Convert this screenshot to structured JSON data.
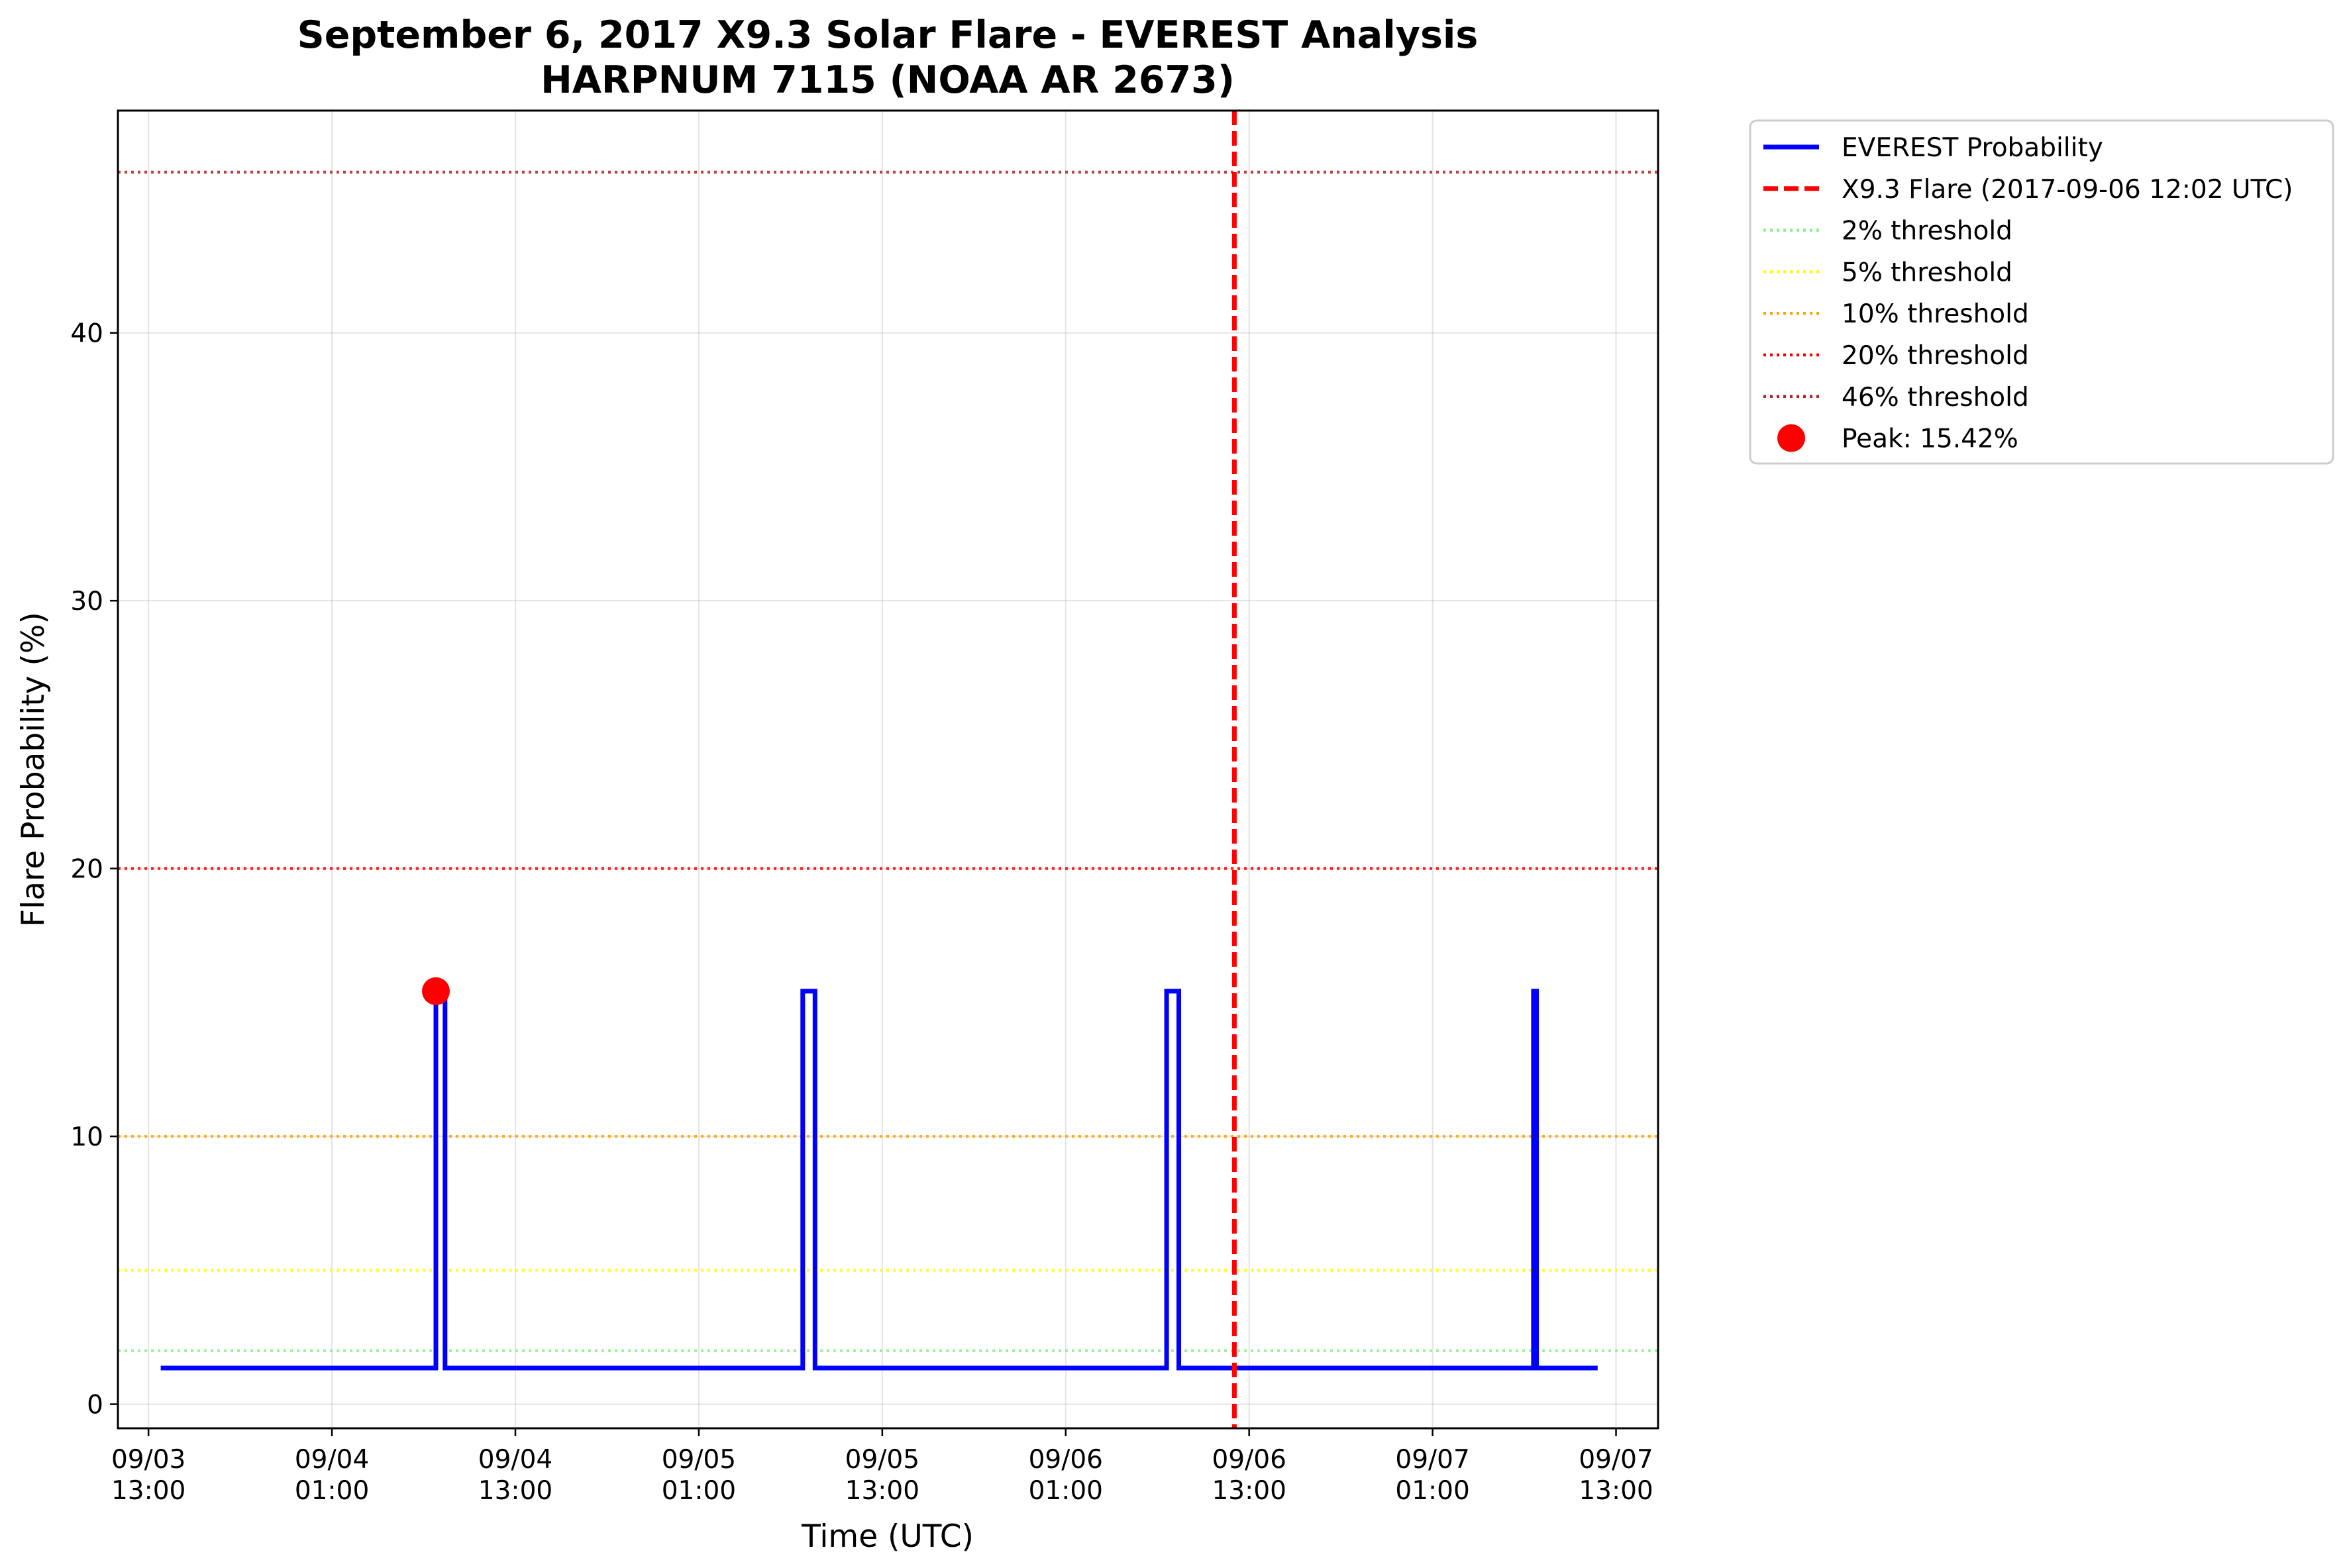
{
  "chart_data": {
    "type": "line",
    "title": "September 6, 2017 X9.3 Solar Flare - EVEREST Analysis",
    "subtitle": "HARPNUM 7115 (NOAA AR 2673)",
    "xlabel": "Time (UTC)",
    "ylabel": "Flare Probability (%)",
    "xlim": [
      "2017-09-03 11:00",
      "2017-09-07 15:45"
    ],
    "ylim": [
      -0.9,
      48.3
    ],
    "x_ticks": [
      {
        "x": "2017-09-03 13:00",
        "line1": "09/03",
        "line2": "13:00"
      },
      {
        "x": "2017-09-04 01:00",
        "line1": "09/04",
        "line2": "01:00"
      },
      {
        "x": "2017-09-04 13:00",
        "line1": "09/04",
        "line2": "13:00"
      },
      {
        "x": "2017-09-05 01:00",
        "line1": "09/05",
        "line2": "01:00"
      },
      {
        "x": "2017-09-05 13:00",
        "line1": "09/05",
        "line2": "13:00"
      },
      {
        "x": "2017-09-06 01:00",
        "line1": "09/06",
        "line2": "01:00"
      },
      {
        "x": "2017-09-06 13:00",
        "line1": "09/06",
        "line2": "13:00"
      },
      {
        "x": "2017-09-07 01:00",
        "line1": "09/07",
        "line2": "01:00"
      },
      {
        "x": "2017-09-07 13:00",
        "line1": "09/07",
        "line2": "13:00"
      }
    ],
    "y_ticks": [
      0,
      10,
      20,
      30,
      40
    ],
    "grid": true,
    "legend_position": "outside-top-right",
    "series": [
      {
        "name": "EVEREST Probability",
        "color": "#0000ff",
        "style": "solid",
        "x": [
          "2017-09-03 13:48",
          "2017-09-04 07:48",
          "2017-09-04 07:48",
          "2017-09-04 08:24",
          "2017-09-04 08:24",
          "2017-09-05 07:48",
          "2017-09-05 07:48",
          "2017-09-05 08:36",
          "2017-09-05 08:36",
          "2017-09-06 07:36",
          "2017-09-06 07:36",
          "2017-09-06 08:24",
          "2017-09-06 08:24",
          "2017-09-07 07:36",
          "2017-09-07 07:36",
          "2017-09-07 07:48",
          "2017-09-07 07:48",
          "2017-09-07 11:48"
        ],
        "y": [
          1.35,
          1.35,
          15.42,
          15.42,
          1.35,
          1.35,
          15.42,
          15.42,
          1.35,
          1.35,
          15.42,
          15.42,
          1.35,
          1.35,
          15.42,
          15.42,
          1.35,
          1.35
        ]
      }
    ],
    "reference_lines": [
      {
        "name": "X9.3 Flare (2017-09-06 12:02 UTC)",
        "orientation": "vertical",
        "x": "2017-09-06 12:02",
        "color": "#ff0000",
        "style": "dashed"
      },
      {
        "name": "2% threshold",
        "orientation": "horizontal",
        "y": 2,
        "color": "#90ee90",
        "style": "dotted"
      },
      {
        "name": "5% threshold",
        "orientation": "horizontal",
        "y": 5,
        "color": "#ffff00",
        "style": "dotted"
      },
      {
        "name": "10% threshold",
        "orientation": "horizontal",
        "y": 10,
        "color": "#ffa500",
        "style": "dotted"
      },
      {
        "name": "20% threshold",
        "orientation": "horizontal",
        "y": 20,
        "color": "#ff0000",
        "style": "dotted"
      },
      {
        "name": "46% threshold",
        "orientation": "horizontal",
        "y": 46,
        "color": "#b22222",
        "style": "dotted"
      }
    ],
    "peak": {
      "name": "Peak: 15.42%",
      "x": "2017-09-04 07:48",
      "y": 15.42,
      "color": "#ff0000"
    }
  }
}
